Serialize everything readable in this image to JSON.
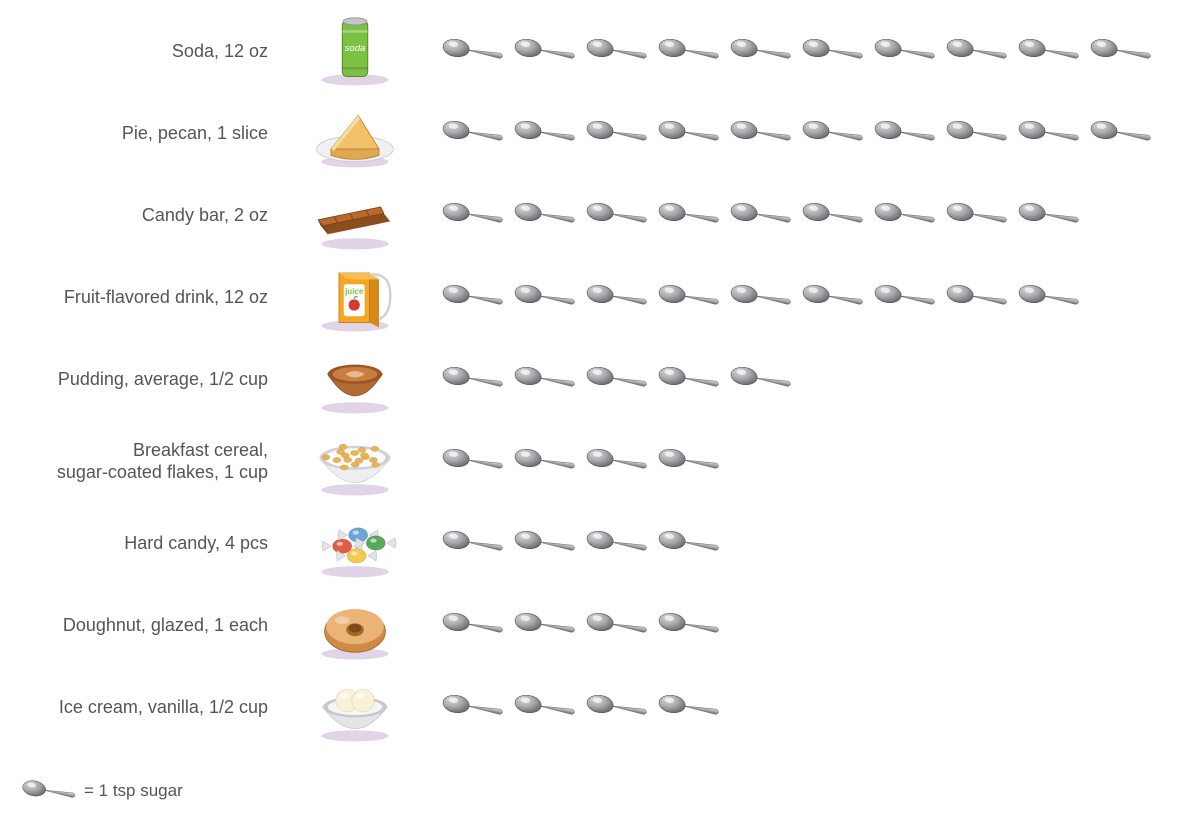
{
  "legend_text": "= 1 tsp sugar",
  "spoon_colors": {
    "light": "#d8d9db",
    "mid": "#a6a8ab",
    "dark": "#6a6c6f",
    "outline": "#4a4c4e"
  },
  "rows": [
    {
      "label": "Soda, 12 oz",
      "icon": "soda",
      "spoons": 10
    },
    {
      "label": "Pie, pecan, 1 slice",
      "icon": "pie",
      "spoons": 10
    },
    {
      "label": "Candy bar, 2 oz",
      "icon": "candybar",
      "spoons": 9
    },
    {
      "label": "Fruit-flavored drink, 12 oz",
      "icon": "juice",
      "spoons": 9
    },
    {
      "label": "Pudding, average, 1/2 cup",
      "icon": "pudding",
      "spoons": 5
    },
    {
      "label": "Breakfast cereal,\nsugar-coated flakes, 1 cup",
      "icon": "cereal",
      "spoons": 4
    },
    {
      "label": "Hard candy, 4 pcs",
      "icon": "hardcandy",
      "spoons": 4
    },
    {
      "label": "Doughnut, glazed, 1 each",
      "icon": "doughnut",
      "spoons": 4
    },
    {
      "label": "Ice cream, vanilla, 1/2 cup",
      "icon": "icecream",
      "spoons": 4
    }
  ],
  "icon_styles": {
    "shadow": "#d9c9e0",
    "soda": {
      "body": "#7cc142",
      "top": "#c5c7c9",
      "text": "#ffffff"
    },
    "pie": {
      "plate": "#f0f0f1",
      "crust": "#e0a850",
      "filling": "#f2c26b",
      "outline": "#bb7a22"
    },
    "candybar": {
      "top": "#b86a2e",
      "side": "#8a4d1c"
    },
    "juice": {
      "box": "#f6a623",
      "side": "#d6891a",
      "label": "#ffffff",
      "text": "#7cc142",
      "apple": "#d33b2f",
      "straw": "#cfd2d5"
    },
    "pudding": {
      "cup": "#b06a33",
      "rim": "#9a5524",
      "swirl": "#e9c79c"
    },
    "cereal": {
      "bowl": "#eeeef0",
      "rim": "#cfd1d4",
      "flakes": "#e9b35a",
      "milk": "#fcfbf7"
    },
    "hardcandy": {
      "red": "#e25b44",
      "blue": "#6da3d8",
      "yellow": "#f3c952",
      "green": "#5aa85a",
      "wrap": "#e3e4e8"
    },
    "doughnut": {
      "dough": "#cf8a45",
      "glaze": "#e9b475",
      "hole": "#a8672c"
    },
    "icecream": {
      "bowl": "#e4e5e7",
      "rim": "#c7c9cc",
      "scoop": "#f8f2d8"
    }
  }
}
